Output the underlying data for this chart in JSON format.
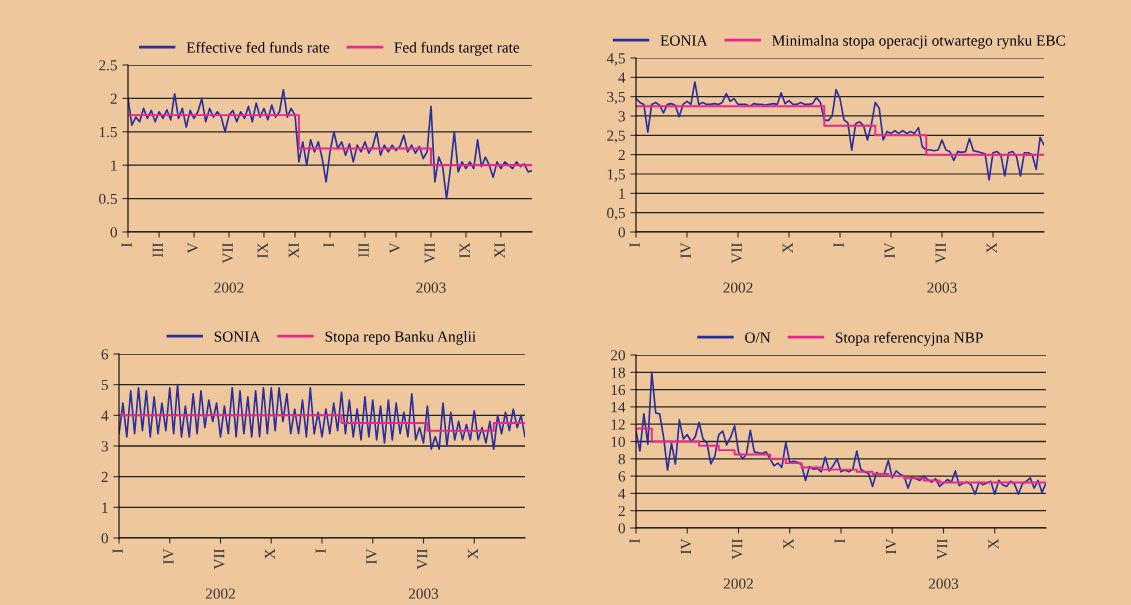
{
  "chart_data": [
    {
      "type": "line",
      "legend": "top",
      "grid": "y",
      "ylim": [
        0,
        2.5
      ],
      "yticks": [
        0,
        0.5,
        1,
        1.5,
        2,
        2.5
      ],
      "categories": [
        "I",
        null,
        null,
        null,
        null,
        null,
        null,
        null,
        "III",
        null,
        null,
        null,
        null,
        null,
        null,
        null,
        null,
        "V",
        null,
        null,
        null,
        null,
        null,
        null,
        null,
        null,
        "VII",
        null,
        null,
        null,
        null,
        null,
        null,
        null,
        null,
        "IX",
        null,
        null,
        null,
        null,
        null,
        null,
        null,
        "XI",
        null,
        null,
        null,
        null,
        null,
        null,
        null,
        null,
        "I",
        null,
        null,
        null,
        null,
        null,
        null,
        null,
        null,
        "III",
        null,
        null,
        null,
        null,
        null,
        null,
        null,
        "V",
        null,
        null,
        null,
        null,
        null,
        null,
        null,
        null,
        "VII",
        null,
        null,
        null,
        null,
        null,
        null,
        null,
        null,
        "IX",
        null,
        null,
        null,
        null,
        null,
        null,
        null,
        null,
        "XI",
        null,
        null,
        null,
        null,
        null,
        null,
        null,
        null
      ],
      "annotations": [
        "2002",
        "2003"
      ],
      "series": [
        {
          "name": "Effective fed funds rate",
          "color": "#2b2f9e",
          "values": [
            2.0,
            1.6,
            1.72,
            1.65,
            1.85,
            1.7,
            1.82,
            1.65,
            1.8,
            1.7,
            1.83,
            1.68,
            2.07,
            1.7,
            1.85,
            1.57,
            1.82,
            1.7,
            1.8,
            2.0,
            1.65,
            1.85,
            1.72,
            1.8,
            1.72,
            1.5,
            1.75,
            1.82,
            1.65,
            1.8,
            1.7,
            1.88,
            1.65,
            1.93,
            1.72,
            1.85,
            1.68,
            1.9,
            1.72,
            1.8,
            2.13,
            1.72,
            1.85,
            1.75,
            1.05,
            1.35,
            1.0,
            1.38,
            1.2,
            1.35,
            1.1,
            0.75,
            1.2,
            1.5,
            1.25,
            1.35,
            1.15,
            1.32,
            1.05,
            1.3,
            1.2,
            1.35,
            1.18,
            1.28,
            1.5,
            1.15,
            1.3,
            1.2,
            1.3,
            1.22,
            1.28,
            1.45,
            1.2,
            1.3,
            1.18,
            1.28,
            1.1,
            1.2,
            1.88,
            0.75,
            1.12,
            0.98,
            0.5,
            0.95,
            1.5,
            0.9,
            1.05,
            0.95,
            1.05,
            0.95,
            1.38,
            0.98,
            1.12,
            1.0,
            0.82,
            1.05,
            0.95,
            1.05,
            1.0,
            0.95,
            1.05,
            0.98,
            1.02,
            0.9,
            0.92
          ]
        },
        {
          "name": "Fed funds target rate",
          "type": "step",
          "color": "#e8288c",
          "values": [
            1.75,
            1.75,
            1.75,
            1.75,
            1.75,
            1.75,
            1.75,
            1.75,
            1.75,
            1.75,
            1.75,
            1.75,
            1.75,
            1.75,
            1.75,
            1.75,
            1.75,
            1.75,
            1.75,
            1.75,
            1.75,
            1.75,
            1.75,
            1.75,
            1.75,
            1.75,
            1.75,
            1.75,
            1.75,
            1.75,
            1.75,
            1.75,
            1.75,
            1.75,
            1.75,
            1.75,
            1.75,
            1.75,
            1.75,
            1.75,
            1.75,
            1.75,
            1.75,
            1.75,
            1.25,
            1.25,
            1.25,
            1.25,
            1.25,
            1.25,
            1.25,
            1.25,
            1.25,
            1.25,
            1.25,
            1.25,
            1.25,
            1.25,
            1.25,
            1.25,
            1.25,
            1.25,
            1.25,
            1.25,
            1.25,
            1.25,
            1.25,
            1.25,
            1.25,
            1.25,
            1.25,
            1.25,
            1.25,
            1.25,
            1.25,
            1.25,
            1.25,
            1.25,
            1.0,
            1.0,
            1.0,
            1.0,
            1.0,
            1.0,
            1.0,
            1.0,
            1.0,
            1.0,
            1.0,
            1.0,
            1.0,
            1.0,
            1.0,
            1.0,
            1.0,
            1.0,
            1.0,
            1.0,
            1.0,
            1.0,
            1.0,
            1.0,
            1.0,
            1.0,
            1.0
          ]
        }
      ]
    },
    {
      "type": "line",
      "legend": "top",
      "grid": "y",
      "ylim": [
        0,
        4.5
      ],
      "yticks": [
        0,
        {
          "value": 0.5,
          "label": "0,5"
        },
        1,
        {
          "value": 1.5,
          "label": "1,5"
        },
        2,
        {
          "value": 2.5,
          "label": "2,5"
        },
        3,
        {
          "value": 3.5,
          "label": "3,5"
        },
        4,
        {
          "value": 4.5,
          "label": "4,5"
        }
      ],
      "categories": [
        "I",
        null,
        null,
        null,
        null,
        null,
        null,
        null,
        null,
        null,
        null,
        null,
        null,
        "IV",
        null,
        null,
        null,
        null,
        null,
        null,
        null,
        null,
        null,
        null,
        null,
        null,
        "VII",
        null,
        null,
        null,
        null,
        null,
        null,
        null,
        null,
        null,
        null,
        null,
        null,
        "X",
        null,
        null,
        null,
        null,
        null,
        null,
        null,
        null,
        null,
        null,
        null,
        null,
        "I",
        null,
        null,
        null,
        null,
        null,
        null,
        null,
        null,
        null,
        null,
        null,
        null,
        "IV",
        null,
        null,
        null,
        null,
        null,
        null,
        null,
        null,
        null,
        null,
        null,
        null,
        "VII",
        null,
        null,
        null,
        null,
        null,
        null,
        null,
        null,
        null,
        null,
        null,
        null,
        "X",
        null,
        null,
        null,
        null,
        null,
        null,
        null,
        null,
        null,
        null,
        null,
        null,
        null
      ],
      "annotations": [
        "2002",
        "2003"
      ],
      "series": [
        {
          "name": "EONIA",
          "color": "#2b2f9e",
          "values": [
            3.45,
            3.35,
            3.3,
            2.58,
            3.3,
            3.35,
            3.28,
            3.08,
            3.3,
            3.32,
            3.28,
            2.98,
            3.3,
            3.38,
            3.3,
            3.88,
            3.3,
            3.35,
            3.3,
            3.3,
            3.32,
            3.3,
            3.35,
            3.58,
            3.38,
            3.45,
            3.3,
            3.3,
            3.3,
            3.25,
            3.32,
            3.3,
            3.3,
            3.28,
            3.3,
            3.32,
            3.3,
            3.6,
            3.32,
            3.4,
            3.3,
            3.3,
            3.35,
            3.3,
            3.3,
            3.32,
            3.48,
            3.35,
            2.9,
            2.88,
            3.0,
            3.68,
            3.45,
            2.9,
            2.82,
            2.12,
            2.8,
            2.85,
            2.75,
            2.38,
            2.78,
            3.35,
            3.2,
            2.38,
            2.6,
            2.55,
            2.62,
            2.55,
            2.62,
            2.55,
            2.6,
            2.55,
            2.7,
            2.2,
            2.12,
            2.12,
            2.1,
            2.12,
            2.38,
            2.12,
            2.08,
            1.85,
            2.08,
            2.06,
            2.08,
            2.42,
            2.1,
            2.08,
            2.05,
            2.02,
            1.35,
            2.05,
            2.08,
            2.0,
            1.45,
            2.05,
            2.08,
            1.95,
            1.45,
            2.05,
            2.05,
            2.0,
            1.62,
            2.45,
            2.25
          ]
        },
        {
          "name": "Minimalna stopa operacji otwartego rynku EBC",
          "type": "step",
          "color": "#e8288c",
          "values": [
            3.25,
            3.25,
            3.25,
            3.25,
            3.25,
            3.25,
            3.25,
            3.25,
            3.25,
            3.25,
            3.25,
            3.25,
            3.25,
            3.25,
            3.25,
            3.25,
            3.25,
            3.25,
            3.25,
            3.25,
            3.25,
            3.25,
            3.25,
            3.25,
            3.25,
            3.25,
            3.25,
            3.25,
            3.25,
            3.25,
            3.25,
            3.25,
            3.25,
            3.25,
            3.25,
            3.25,
            3.25,
            3.25,
            3.25,
            3.25,
            3.25,
            3.25,
            3.25,
            3.25,
            3.25,
            3.25,
            3.25,
            3.25,
            2.75,
            2.75,
            2.75,
            2.75,
            2.75,
            2.75,
            2.75,
            2.75,
            2.75,
            2.75,
            2.75,
            2.75,
            2.75,
            2.5,
            2.5,
            2.5,
            2.5,
            2.5,
            2.5,
            2.5,
            2.5,
            2.5,
            2.5,
            2.5,
            2.5,
            2.5,
            2.0,
            2.0,
            2.0,
            2.0,
            2.0,
            2.0,
            2.0,
            2.0,
            2.0,
            2.0,
            2.0,
            2.0,
            2.0,
            2.0,
            2.0,
            2.0,
            2.0,
            2.0,
            2.0,
            2.0,
            2.0,
            2.0,
            2.0,
            2.0,
            2.0,
            2.0,
            2.0,
            2.0,
            2.0,
            2.0,
            2.0
          ]
        }
      ]
    },
    {
      "type": "line",
      "legend": "top",
      "grid": "y",
      "ylim": [
        0,
        6
      ],
      "yticks": [
        0,
        1,
        2,
        3,
        4,
        5,
        6
      ],
      "categories": [
        "I",
        null,
        null,
        null,
        null,
        null,
        null,
        null,
        null,
        null,
        null,
        null,
        null,
        "IV",
        null,
        null,
        null,
        null,
        null,
        null,
        null,
        null,
        null,
        null,
        null,
        null,
        "VII",
        null,
        null,
        null,
        null,
        null,
        null,
        null,
        null,
        null,
        null,
        null,
        null,
        "X",
        null,
        null,
        null,
        null,
        null,
        null,
        null,
        null,
        null,
        null,
        null,
        null,
        "I",
        null,
        null,
        null,
        null,
        null,
        null,
        null,
        null,
        null,
        null,
        null,
        null,
        "IV",
        null,
        null,
        null,
        null,
        null,
        null,
        null,
        null,
        null,
        null,
        null,
        null,
        "VII",
        null,
        null,
        null,
        null,
        null,
        null,
        null,
        null,
        null,
        null,
        null,
        null,
        "X",
        null,
        null,
        null,
        null,
        null,
        null,
        null,
        null,
        null,
        null,
        null,
        null,
        null
      ],
      "annotations": [
        "2002",
        "2003"
      ],
      "series": [
        {
          "name": "SONIA",
          "color": "#2b2f9e",
          "values": [
            3.4,
            4.4,
            3.3,
            4.8,
            3.4,
            4.9,
            3.5,
            4.8,
            3.3,
            4.6,
            3.4,
            4.4,
            3.5,
            4.9,
            3.4,
            5.0,
            3.3,
            4.3,
            3.3,
            4.7,
            3.4,
            4.8,
            3.6,
            4.5,
            3.8,
            4.4,
            3.3,
            4.3,
            3.4,
            4.9,
            3.3,
            4.8,
            3.4,
            4.6,
            3.3,
            4.8,
            3.3,
            4.9,
            3.4,
            4.9,
            3.5,
            4.9,
            3.8,
            4.7,
            3.4,
            4.2,
            3.4,
            4.5,
            3.3,
            4.9,
            3.4,
            4.1,
            3.3,
            4.2,
            3.4,
            4.4,
            3.5,
            4.75,
            3.4,
            4.5,
            3.3,
            4.2,
            3.2,
            4.6,
            3.3,
            4.5,
            3.2,
            4.3,
            3.1,
            4.5,
            3.2,
            4.4,
            3.4,
            4.1,
            3.3,
            4.7,
            3.2,
            3.6,
            3.1,
            4.3,
            2.9,
            3.3,
            2.9,
            4.4,
            3.0,
            4.1,
            3.2,
            3.8,
            3.2,
            3.7,
            3.2,
            4.15,
            3.2,
            3.6,
            3.1,
            3.8,
            2.9,
            4.0,
            3.4,
            4.1,
            3.5,
            4.2,
            3.6,
            4.0,
            3.3
          ]
        },
        {
          "name": "Stopa repo Banku Anglii",
          "type": "step",
          "color": "#e8288c",
          "values": [
            4.0,
            4.0,
            4.0,
            4.0,
            4.0,
            4.0,
            4.0,
            4.0,
            4.0,
            4.0,
            4.0,
            4.0,
            4.0,
            4.0,
            4.0,
            4.0,
            4.0,
            4.0,
            4.0,
            4.0,
            4.0,
            4.0,
            4.0,
            4.0,
            4.0,
            4.0,
            4.0,
            4.0,
            4.0,
            4.0,
            4.0,
            4.0,
            4.0,
            4.0,
            4.0,
            4.0,
            4.0,
            4.0,
            4.0,
            4.0,
            4.0,
            4.0,
            4.0,
            4.0,
            4.0,
            4.0,
            4.0,
            4.0,
            4.0,
            4.0,
            4.0,
            4.0,
            4.0,
            4.0,
            4.0,
            4.0,
            4.0,
            3.75,
            3.75,
            3.75,
            3.75,
            3.75,
            3.75,
            3.75,
            3.75,
            3.75,
            3.75,
            3.75,
            3.75,
            3.75,
            3.75,
            3.75,
            3.75,
            3.75,
            3.75,
            3.75,
            3.75,
            3.75,
            3.75,
            3.5,
            3.5,
            3.5,
            3.5,
            3.5,
            3.5,
            3.5,
            3.5,
            3.5,
            3.5,
            3.5,
            3.5,
            3.5,
            3.5,
            3.5,
            3.5,
            3.5,
            3.75,
            3.75,
            3.75,
            3.75,
            3.75,
            3.75,
            3.75,
            3.75,
            3.75
          ]
        }
      ]
    },
    {
      "type": "line",
      "legend": "top",
      "grid": "y",
      "ylim": [
        0,
        20
      ],
      "yticks": [
        0,
        2,
        4,
        6,
        8,
        10,
        12,
        14,
        16,
        18,
        20
      ],
      "categories": [
        "I",
        null,
        null,
        null,
        null,
        null,
        null,
        null,
        null,
        null,
        null,
        null,
        null,
        "IV",
        null,
        null,
        null,
        null,
        null,
        null,
        null,
        null,
        null,
        null,
        null,
        null,
        "VII",
        null,
        null,
        null,
        null,
        null,
        null,
        null,
        null,
        null,
        null,
        null,
        null,
        "X",
        null,
        null,
        null,
        null,
        null,
        null,
        null,
        null,
        null,
        null,
        null,
        null,
        "I",
        null,
        null,
        null,
        null,
        null,
        null,
        null,
        null,
        null,
        null,
        null,
        null,
        "IV",
        null,
        null,
        null,
        null,
        null,
        null,
        null,
        null,
        null,
        null,
        null,
        null,
        "VII",
        null,
        null,
        null,
        null,
        null,
        null,
        null,
        null,
        null,
        null,
        null,
        null,
        "X",
        null,
        null,
        null,
        null,
        null,
        null,
        null,
        null,
        null,
        null,
        null,
        null,
        null
      ],
      "annotations": [
        "2002",
        "2003"
      ],
      "series": [
        {
          "name": "O/N",
          "color": "#2b2f9e",
          "values": [
            11.2,
            8.9,
            13.2,
            9.7,
            18.0,
            13.3,
            13.2,
            10.5,
            6.7,
            9.8,
            7.4,
            12.5,
            10.3,
            10.8,
            10.0,
            10.5,
            12.2,
            10.3,
            9.8,
            7.4,
            8.3,
            10.8,
            11.2,
            9.6,
            10.5,
            11.8,
            8.8,
            8.0,
            8.5,
            11.3,
            8.8,
            8.7,
            8.6,
            8.8,
            8.0,
            7.2,
            7.5,
            7.0,
            9.9,
            7.6,
            7.7,
            7.6,
            7.3,
            5.5,
            7.1,
            6.8,
            6.9,
            6.5,
            8.2,
            6.6,
            7.2,
            8.0,
            6.5,
            6.7,
            6.5,
            6.8,
            8.9,
            6.8,
            6.5,
            6.3,
            4.8,
            6.4,
            6.2,
            6.3,
            7.8,
            5.8,
            6.6,
            6.2,
            6.0,
            4.6,
            5.9,
            5.7,
            5.5,
            6.0,
            5.6,
            5.3,
            5.7,
            4.8,
            5.2,
            5.6,
            5.3,
            6.6,
            4.9,
            5.2,
            5.3,
            5.0,
            3.9,
            5.3,
            5.0,
            5.2,
            5.4,
            3.9,
            5.5,
            5.0,
            4.8,
            5.4,
            5.1,
            3.9,
            5.1,
            5.4,
            5.8,
            4.6,
            5.5,
            4.1,
            5.2
          ]
        },
        {
          "name": "Stopa referencyjna NBP",
          "type": "step",
          "color": "#e8288c",
          "values": [
            11.5,
            11.5,
            11.5,
            11.5,
            10.0,
            10.0,
            10.0,
            10.0,
            10.0,
            10.0,
            10.0,
            10.0,
            10.0,
            10.0,
            10.0,
            10.0,
            9.5,
            9.5,
            9.5,
            9.5,
            9.5,
            9.0,
            9.0,
            9.0,
            9.0,
            8.5,
            8.5,
            8.5,
            8.5,
            8.5,
            8.5,
            8.5,
            8.5,
            8.5,
            8.0,
            8.0,
            8.0,
            8.0,
            7.5,
            7.5,
            7.5,
            7.5,
            7.0,
            7.0,
            7.0,
            7.0,
            7.0,
            6.75,
            6.75,
            6.75,
            6.75,
            6.75,
            6.75,
            6.75,
            6.75,
            6.75,
            6.5,
            6.5,
            6.5,
            6.5,
            6.25,
            6.25,
            6.25,
            6.25,
            6.0,
            6.0,
            6.0,
            6.0,
            5.75,
            5.75,
            5.75,
            5.75,
            5.75,
            5.5,
            5.5,
            5.5,
            5.5,
            5.25,
            5.25,
            5.25,
            5.25,
            5.25,
            5.25,
            5.25,
            5.25,
            5.25,
            5.25,
            5.25,
            5.25,
            5.25,
            5.25,
            5.25,
            5.25,
            5.25,
            5.25,
            5.25,
            5.25,
            5.25,
            5.25,
            5.25,
            5.25,
            5.25,
            5.25,
            5.25,
            5.25
          ]
        }
      ]
    }
  ]
}
